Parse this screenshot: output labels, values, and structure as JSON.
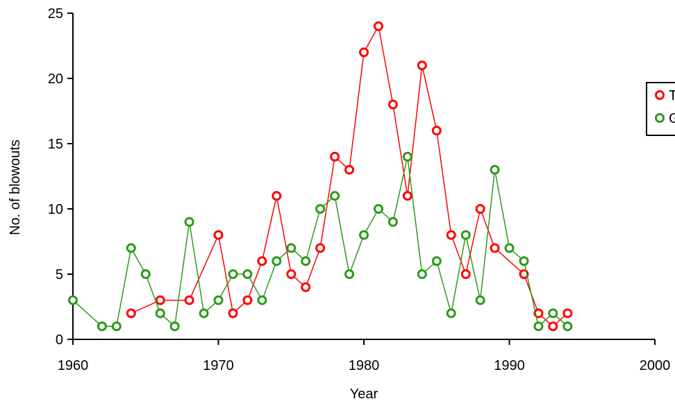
{
  "chart_data": {
    "type": "line",
    "xlabel": "Year",
    "ylabel": "No. of blowouts",
    "xlim": [
      1960,
      2000
    ],
    "ylim": [
      0,
      25
    ],
    "x_ticks": [
      "1960",
      "1970",
      "1980",
      "1990",
      "2000"
    ],
    "y_ticks": [
      "0",
      "5",
      "10",
      "15",
      "20",
      "25"
    ],
    "grid": false,
    "legend_position": "right",
    "series": [
      {
        "name": "T",
        "color": "#ff0000",
        "x": [
          1964,
          1966,
          1968,
          1970,
          1971,
          1972,
          1973,
          1974,
          1975,
          1976,
          1977,
          1978,
          1979,
          1980,
          1981,
          1982,
          1983,
          1984,
          1985,
          1986,
          1987,
          1988,
          1989,
          1991,
          1992,
          1993,
          1994
        ],
        "y": [
          2,
          3,
          3,
          8,
          2,
          3,
          6,
          11,
          5,
          4,
          7,
          14,
          13,
          22,
          24,
          18,
          11,
          21,
          16,
          8,
          5,
          10,
          7,
          5,
          2,
          1,
          2
        ]
      },
      {
        "name": "G",
        "color": "#2a9a1a",
        "x": [
          1960,
          1962,
          1963,
          1964,
          1965,
          1966,
          1967,
          1968,
          1969,
          1970,
          1971,
          1972,
          1973,
          1974,
          1975,
          1976,
          1977,
          1978,
          1979,
          1980,
          1981,
          1982,
          1983,
          1984,
          1985,
          1986,
          1987,
          1988,
          1989,
          1990,
          1991,
          1992,
          1993,
          1994
        ],
        "y": [
          3,
          1,
          1,
          7,
          5,
          2,
          1,
          9,
          2,
          3,
          5,
          5,
          3,
          6,
          7,
          6,
          10,
          11,
          5,
          8,
          10,
          9,
          14,
          5,
          6,
          2,
          8,
          3,
          13,
          7,
          6,
          1,
          2,
          1
        ]
      }
    ]
  }
}
